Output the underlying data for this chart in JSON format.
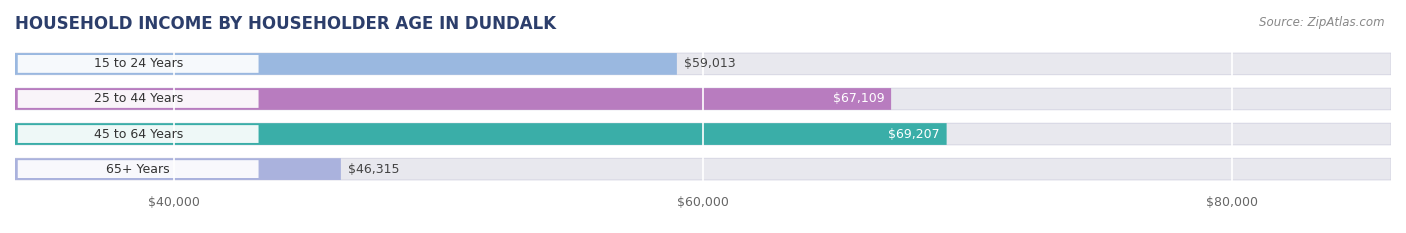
{
  "title": "HOUSEHOLD INCOME BY HOUSEHOLDER AGE IN DUNDALK",
  "source": "Source: ZipAtlas.com",
  "categories": [
    "15 to 24 Years",
    "25 to 44 Years",
    "45 to 64 Years",
    "65+ Years"
  ],
  "values": [
    59013,
    67109,
    69207,
    46315
  ],
  "labels": [
    "$59,013",
    "$67,109",
    "$69,207",
    "$46,315"
  ],
  "bar_colors": [
    "#9ab8e0",
    "#b87cbf",
    "#3aaea8",
    "#aab2dd"
  ],
  "value_label_colors": [
    "#555555",
    "#ffffff",
    "#ffffff",
    "#555555"
  ],
  "xlim_min": 34000,
  "xlim_max": 86000,
  "xticks": [
    40000,
    60000,
    80000
  ],
  "xticklabels": [
    "$40,000",
    "$60,000",
    "$80,000"
  ],
  "background_color": "#ffffff",
  "bar_bg_color": "#e8e8ee",
  "title_fontsize": 12,
  "source_fontsize": 8.5,
  "tick_fontsize": 9,
  "label_fontsize": 9,
  "cat_fontsize": 9,
  "bar_height": 0.62
}
